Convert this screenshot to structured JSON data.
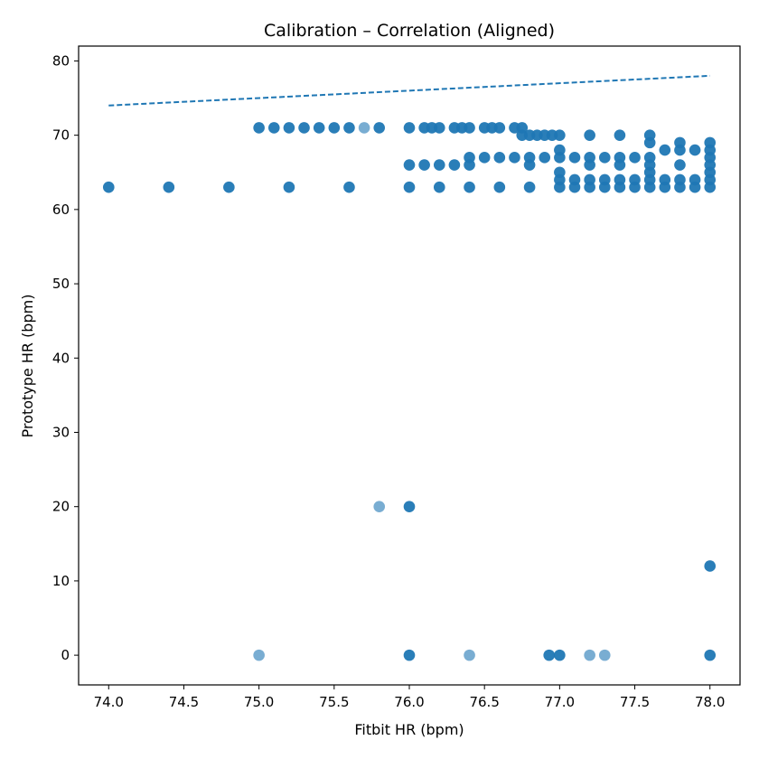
{
  "chart_data": {
    "type": "scatter",
    "title": "Calibration – Correlation (Aligned)",
    "xlabel": "Fitbit HR (bpm)",
    "ylabel": "Prototype HR (bpm)",
    "xlim": [
      73.8,
      78.2
    ],
    "ylim": [
      -4,
      82
    ],
    "xticks": [
      "74.0",
      "74.5",
      "75.0",
      "75.5",
      "76.0",
      "76.5",
      "77.0",
      "77.5",
      "78.0"
    ],
    "yticks": [
      "0",
      "10",
      "20",
      "30",
      "40",
      "50",
      "60",
      "70",
      "80"
    ],
    "grid": false,
    "marker_color": "#1f77b4",
    "identity_line": {
      "style": "dashed",
      "color": "#1f77b4",
      "x": [
        74,
        78
      ],
      "y": [
        74,
        78
      ]
    },
    "points": [
      [
        74.0,
        63
      ],
      [
        74.4,
        63
      ],
      [
        74.8,
        63
      ],
      [
        75.2,
        63
      ],
      [
        75.6,
        63
      ],
      [
        76.0,
        63
      ],
      [
        76.2,
        63
      ],
      [
        76.4,
        63
      ],
      [
        76.6,
        63
      ],
      [
        76.8,
        63
      ],
      [
        77.0,
        63
      ],
      [
        77.1,
        63
      ],
      [
        77.2,
        63
      ],
      [
        77.3,
        63
      ],
      [
        77.4,
        63
      ],
      [
        77.5,
        63
      ],
      [
        77.6,
        63
      ],
      [
        77.7,
        63
      ],
      [
        77.8,
        63
      ],
      [
        77.9,
        63
      ],
      [
        78.0,
        63
      ],
      [
        77.0,
        64
      ],
      [
        77.1,
        64
      ],
      [
        77.2,
        64
      ],
      [
        77.3,
        64
      ],
      [
        77.4,
        64
      ],
      [
        77.5,
        64
      ],
      [
        77.6,
        64
      ],
      [
        77.7,
        64
      ],
      [
        77.8,
        64
      ],
      [
        77.9,
        64
      ],
      [
        78.0,
        64
      ],
      [
        77.0,
        65
      ],
      [
        77.6,
        65
      ],
      [
        78.0,
        65
      ],
      [
        76.4,
        66
      ],
      [
        76.8,
        66
      ],
      [
        77.2,
        66
      ],
      [
        77.4,
        66
      ],
      [
        77.6,
        66
      ],
      [
        77.8,
        66
      ],
      [
        78.0,
        66
      ],
      [
        76.0,
        66
      ],
      [
        76.1,
        66
      ],
      [
        76.2,
        66
      ],
      [
        76.3,
        66
      ],
      [
        76.4,
        67
      ],
      [
        76.5,
        67
      ],
      [
        76.6,
        67
      ],
      [
        76.7,
        67
      ],
      [
        76.8,
        67
      ],
      [
        76.9,
        67
      ],
      [
        77.0,
        67
      ],
      [
        77.1,
        67
      ],
      [
        77.2,
        67
      ],
      [
        77.3,
        67
      ],
      [
        77.4,
        67
      ],
      [
        77.5,
        67
      ],
      [
        77.6,
        67
      ],
      [
        78.0,
        67
      ],
      [
        77.0,
        68
      ],
      [
        77.7,
        68
      ],
      [
        77.8,
        68
      ],
      [
        77.9,
        68
      ],
      [
        78.0,
        68
      ],
      [
        77.6,
        69
      ],
      [
        77.8,
        69
      ],
      [
        78.0,
        69
      ],
      [
        76.75,
        70
      ],
      [
        76.8,
        70
      ],
      [
        76.85,
        70
      ],
      [
        76.9,
        70
      ],
      [
        76.95,
        70
      ],
      [
        77.0,
        70
      ],
      [
        77.2,
        70
      ],
      [
        77.4,
        70
      ],
      [
        77.6,
        70
      ],
      [
        75.0,
        71
      ],
      [
        75.1,
        71
      ],
      [
        75.2,
        71
      ],
      [
        75.3,
        71
      ],
      [
        75.4,
        71
      ],
      [
        75.5,
        71
      ],
      [
        75.6,
        71
      ],
      [
        75.8,
        71
      ],
      [
        76.0,
        71
      ],
      [
        76.1,
        71
      ],
      [
        76.15,
        71
      ],
      [
        76.2,
        71
      ],
      [
        76.3,
        71
      ],
      [
        76.35,
        71
      ],
      [
        76.4,
        71
      ],
      [
        76.5,
        71
      ],
      [
        76.55,
        71
      ],
      [
        76.6,
        71
      ],
      [
        76.7,
        71
      ],
      [
        76.75,
        71
      ],
      [
        76.0,
        20
      ],
      [
        78.0,
        12
      ],
      [
        76.0,
        0
      ],
      [
        76.93,
        0
      ],
      [
        77.0,
        0
      ],
      [
        78.0,
        0
      ]
    ],
    "faint_points": [
      [
        75.7,
        71
      ],
      [
        75.8,
        20
      ],
      [
        75.0,
        0
      ],
      [
        76.4,
        0
      ],
      [
        77.2,
        0
      ],
      [
        77.3,
        0
      ]
    ]
  }
}
